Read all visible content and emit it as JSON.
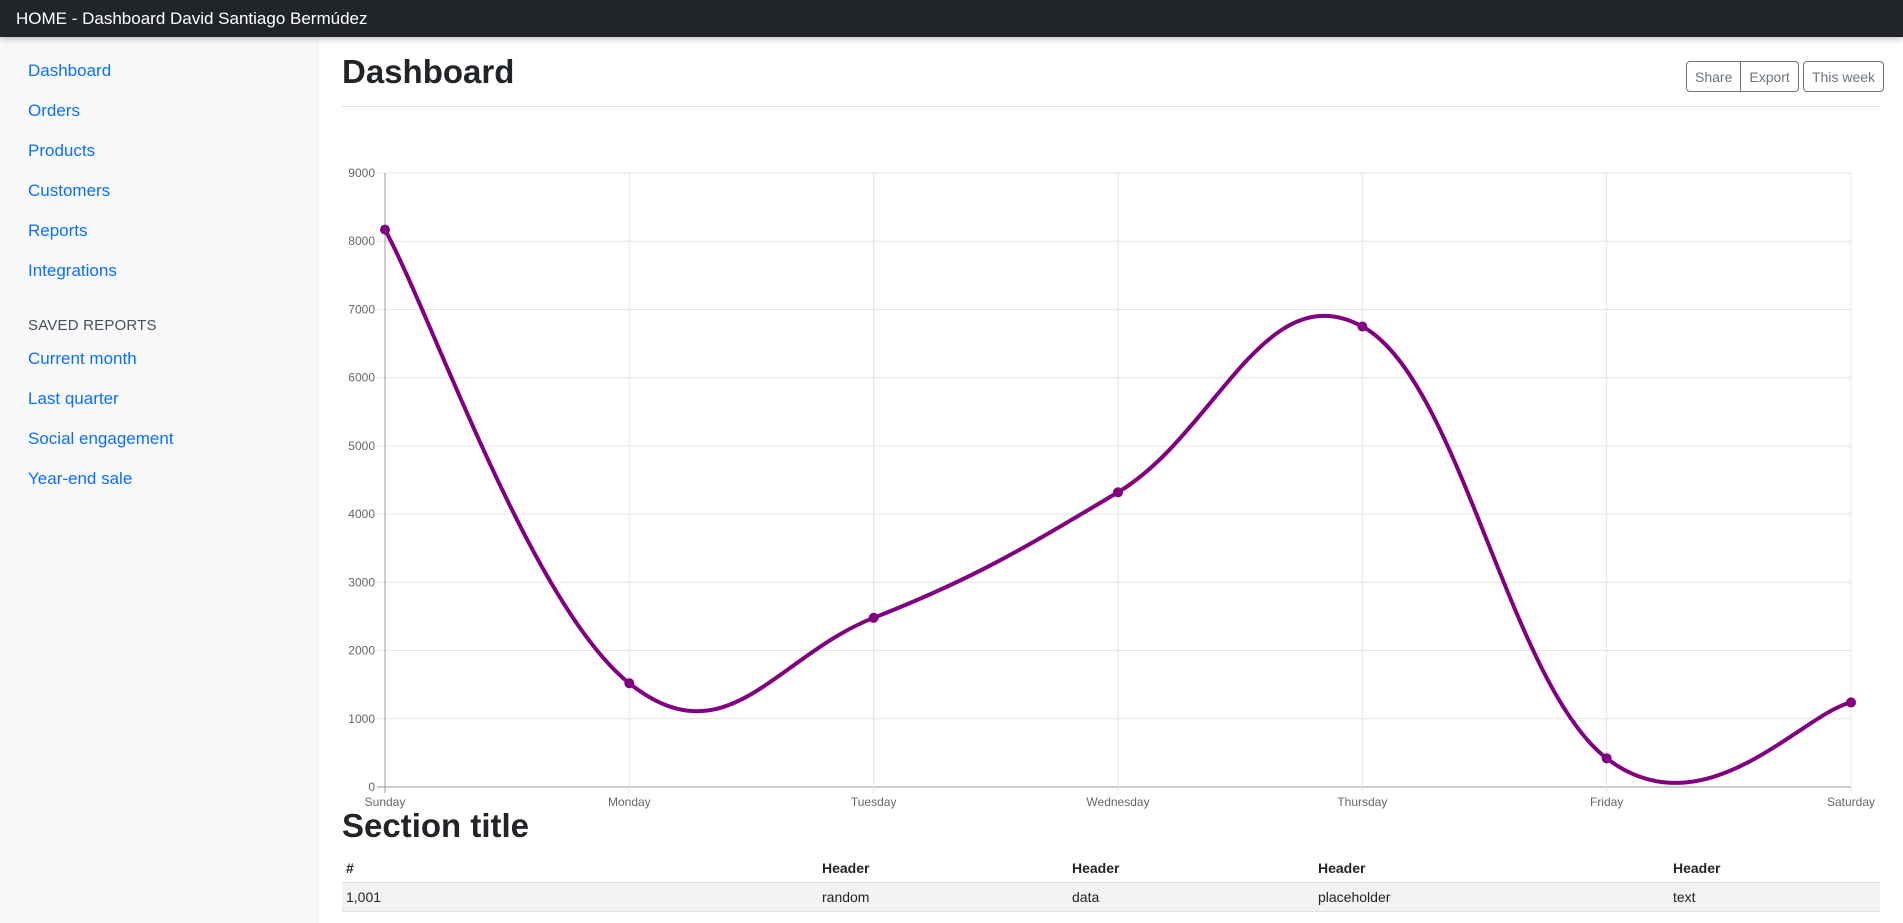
{
  "navbar": {
    "brand": "HOME - Dashboard David Santiago Bermúdez"
  },
  "sidebar": {
    "items": [
      {
        "label": "Dashboard"
      },
      {
        "label": "Orders"
      },
      {
        "label": "Products"
      },
      {
        "label": "Customers"
      },
      {
        "label": "Reports"
      },
      {
        "label": "Integrations"
      }
    ],
    "saved_heading": "Saved reports",
    "saved_items": [
      {
        "label": "Current month"
      },
      {
        "label": "Last quarter"
      },
      {
        "label": "Social engagement"
      },
      {
        "label": "Year-end sale"
      }
    ]
  },
  "main": {
    "title": "Dashboard",
    "toolbar": {
      "share_label": "Share",
      "export_label": "Export",
      "period_label": "This week"
    },
    "section_title": "Section title",
    "table": {
      "headers": [
        "#",
        "Header",
        "Header",
        "Header",
        "Header"
      ],
      "rows": [
        [
          "1,001",
          "random",
          "data",
          "placeholder",
          "text"
        ]
      ]
    }
  },
  "colors": {
    "line": "#800080",
    "link": "#0d6efd",
    "navbar": "#212529"
  },
  "chart_data": {
    "type": "line",
    "categories": [
      "Sunday",
      "Monday",
      "Tuesday",
      "Wednesday",
      "Thursday",
      "Friday",
      "Saturday"
    ],
    "series": [
      {
        "values": [
          8170,
          1520,
          2480,
          4320,
          6750,
          420,
          1240
        ]
      }
    ],
    "ylim": [
      0,
      9000
    ],
    "yticks": [
      0,
      1000,
      2000,
      3000,
      4000,
      5000,
      6000,
      7000,
      8000,
      9000
    ],
    "grid": true,
    "legend": "none",
    "smooth": true
  }
}
